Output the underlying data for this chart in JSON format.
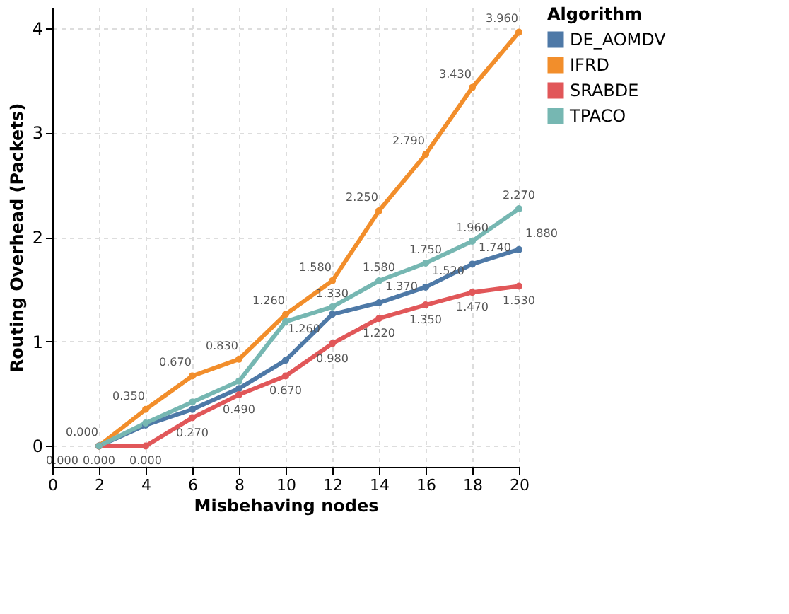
{
  "chart_data": {
    "type": "line",
    "xlabel": "Misbehaving nodes",
    "ylabel": "Routing Overhead (Packets)",
    "legend_title": "Algorithm",
    "x": [
      2,
      4,
      6,
      8,
      10,
      12,
      14,
      16,
      18,
      20
    ],
    "series": [
      {
        "name": "DE_AOMDV",
        "color": "#4e79a7",
        "values": [
          0.0,
          0.2,
          0.35,
          0.55,
          0.82,
          1.26,
          1.37,
          1.52,
          1.74,
          1.88
        ],
        "value_labels": [
          "0.000",
          null,
          null,
          null,
          null,
          "1.260",
          "1.370",
          "1.520",
          "1.740",
          "1.880"
        ]
      },
      {
        "name": "IFRD",
        "color": "#f28e2b",
        "values": [
          0.0,
          0.35,
          0.67,
          0.83,
          1.26,
          1.58,
          2.25,
          2.79,
          3.43,
          3.96
        ],
        "value_labels": [
          "0.000",
          "0.350",
          "0.670",
          "0.830",
          "1.260",
          "1.580",
          "2.250",
          "2.790",
          "3.430",
          "3.960"
        ]
      },
      {
        "name": "SRABDE",
        "color": "#e15759",
        "values": [
          0.0,
          0.0,
          0.27,
          0.49,
          0.67,
          0.98,
          1.22,
          1.35,
          1.47,
          1.53
        ],
        "value_labels": [
          "0.000",
          "0.000",
          "0.270",
          "0.490",
          "0.670",
          "0.980",
          "1.220",
          "1.350",
          "1.470",
          "1.530"
        ]
      },
      {
        "name": "TPACO",
        "color": "#76b7b2",
        "values": [
          0.0,
          0.22,
          0.42,
          0.62,
          1.19,
          1.33,
          1.58,
          1.75,
          1.96,
          2.27
        ],
        "value_labels": [
          null,
          null,
          null,
          null,
          null,
          "1.330",
          "1.580",
          "1.750",
          "1.960",
          "2.270"
        ]
      }
    ],
    "xlim": [
      0,
      20
    ],
    "xticks": [
      0,
      2,
      4,
      6,
      8,
      10,
      12,
      14,
      16,
      18,
      20
    ],
    "ylim": [
      -0.2,
      4.2
    ],
    "yticks": [
      0,
      1,
      2,
      3,
      4
    ],
    "grid": true,
    "legend": "top right",
    "marker": "circle",
    "line_style": "solid"
  }
}
